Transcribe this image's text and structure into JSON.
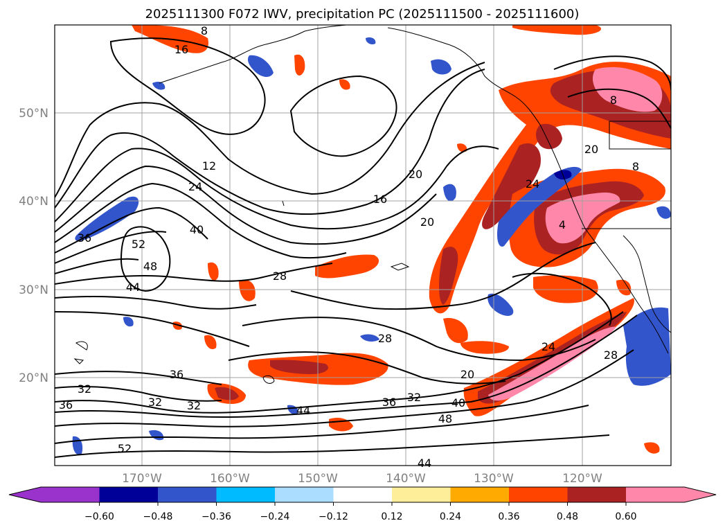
{
  "title": "2025111300 F072 IWV, precipitation PC (2025111500 - 2025111600)",
  "latitude_labels": [
    "50°N",
    "40°N",
    "30°N",
    "20°N"
  ],
  "longitude_labels": [
    "170°W",
    "160°W",
    "150°W",
    "140°W",
    "130°W",
    "120°W"
  ],
  "colorbar": {
    "tick_labels": [
      "−0.60",
      "−0.48",
      "−0.36",
      "−0.24",
      "−0.12",
      "0.12",
      "0.24",
      "0.36",
      "0.48",
      "0.60"
    ],
    "colors": [
      "#9933cc",
      "#000099",
      "#3355cc",
      "#00bbff",
      "#aaddff",
      "#ffffff",
      "#ffee99",
      "#ffaa00",
      "#ff4400",
      "#aa2222",
      "#ff88aa"
    ]
  },
  "contour_labels": [
    "8",
    "16",
    "12",
    "24",
    "40",
    "36",
    "52",
    "48",
    "44",
    "28",
    "16",
    "20",
    "20",
    "28",
    "24",
    "20",
    "8",
    "4",
    "36",
    "32",
    "32",
    "36",
    "32",
    "40",
    "48",
    "52",
    "44",
    "20",
    "28",
    "24",
    "32",
    "36",
    "44",
    "8"
  ],
  "colors": {
    "positive_high": "#ff88aa",
    "positive_mid": "#aa2222",
    "positive": "#ff4400",
    "positive_low": "#ffaa00",
    "negative": "#3355cc",
    "negative_low": "#00bbff",
    "negative_strong": "#000099"
  }
}
